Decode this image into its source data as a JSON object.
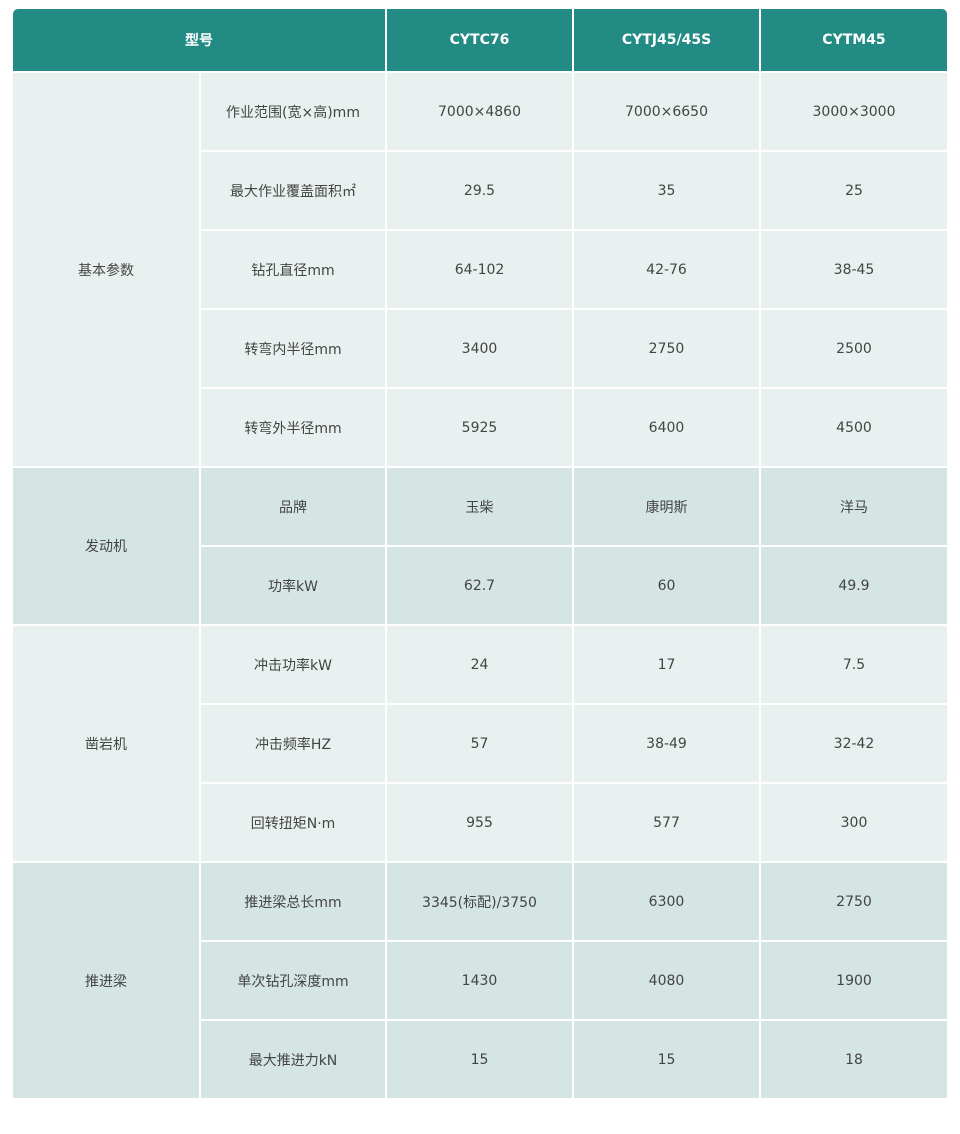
{
  "header": {
    "model_label": "型号",
    "models": [
      "CYTC76",
      "CYTJ45/45S",
      "CYTM45"
    ]
  },
  "colors": {
    "header_bg": "#228b84",
    "row_light": "#e8f1f0",
    "row_dark": "#d4e5e3"
  },
  "groups": [
    {
      "name": "基本参数",
      "rows": [
        {
          "param": "作业范围(宽×高)mm",
          "values": [
            "7000×4860",
            "7000×6650",
            "3000×3000"
          ]
        },
        {
          "param": "最大作业覆盖面积㎡",
          "values": [
            "29.5",
            "35",
            "25"
          ]
        },
        {
          "param": "钻孔直径mm",
          "values": [
            "64-102",
            "42-76",
            "38-45"
          ]
        },
        {
          "param": "转弯内半径mm",
          "values": [
            "3400",
            "2750",
            "2500"
          ]
        },
        {
          "param": "转弯外半径mm",
          "values": [
            "5925",
            "6400",
            "4500"
          ]
        }
      ]
    },
    {
      "name": "发动机",
      "rows": [
        {
          "param": "品牌",
          "values": [
            "玉柴",
            "康明斯",
            "洋马"
          ]
        },
        {
          "param": "功率kW",
          "values": [
            "62.7",
            "60",
            "49.9"
          ]
        }
      ]
    },
    {
      "name": "凿岩机",
      "rows": [
        {
          "param": "冲击功率kW",
          "values": [
            "24",
            "17",
            "7.5"
          ]
        },
        {
          "param": "冲击频率HZ",
          "values": [
            "57",
            "38-49",
            "32-42"
          ]
        },
        {
          "param": "回转扭矩N·m",
          "values": [
            "955",
            "577",
            "300"
          ]
        }
      ]
    },
    {
      "name": "推进梁",
      "rows": [
        {
          "param": "推进梁总长mm",
          "values": [
            "3345(标配)/3750",
            "6300",
            "2750"
          ]
        },
        {
          "param": "单次钻孔深度mm",
          "values": [
            "1430",
            "4080",
            "1900"
          ]
        },
        {
          "param": "最大推进力kN",
          "values": [
            "15",
            "15",
            "18"
          ]
        }
      ]
    }
  ]
}
